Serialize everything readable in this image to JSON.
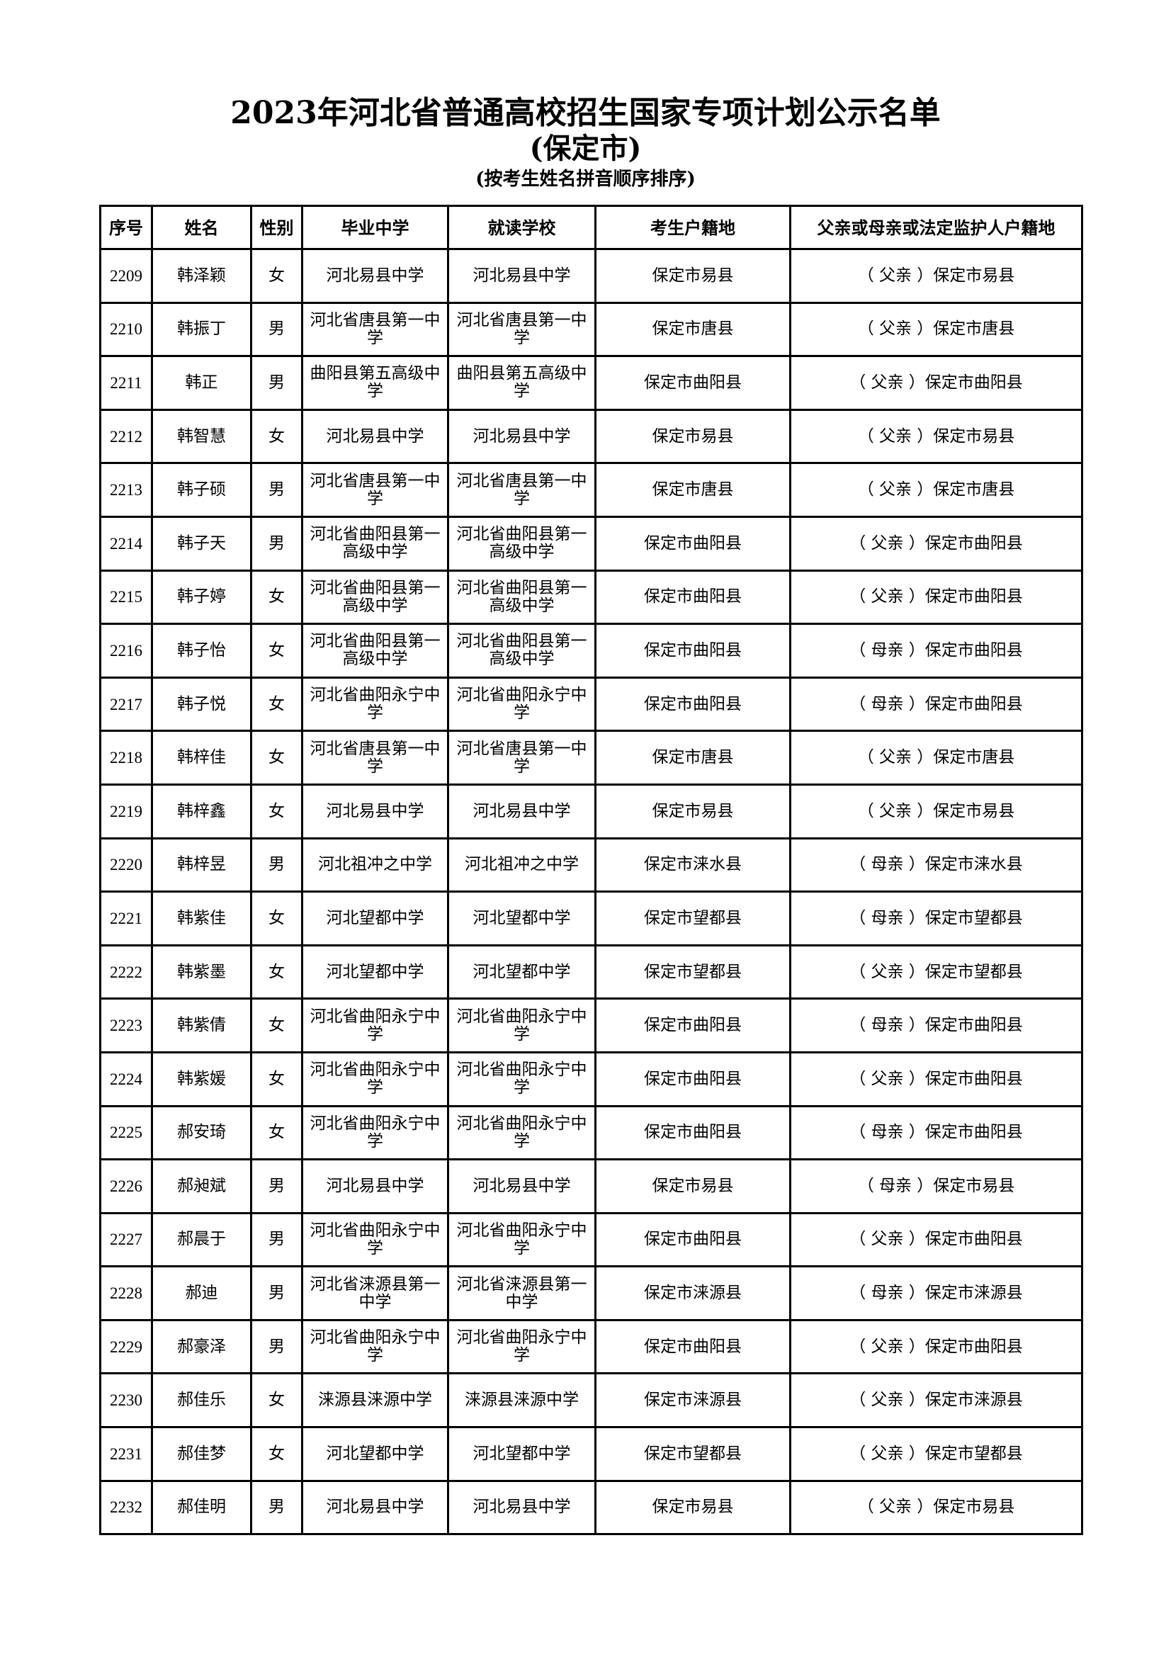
{
  "document": {
    "title": "2023年河北省普通高校招生国家专项计划公示名单",
    "subtitle": "(保定市)",
    "note": "(按考生姓名拼音顺序排序)"
  },
  "table": {
    "headers": [
      "序号",
      "姓名",
      "性别",
      "毕业中学",
      "就读学校",
      "考生户籍地",
      "父亲或母亲或法定监护人户籍地"
    ],
    "rows": [
      [
        "2209",
        "韩泽颖",
        "女",
        "河北易县中学",
        "河北易县中学",
        "保定市易县",
        "（ 父亲 ）保定市易县"
      ],
      [
        "2210",
        "韩振丁",
        "男",
        "河北省唐县第一中学",
        "河北省唐县第一中学",
        "保定市唐县",
        "（ 父亲 ）保定市唐县"
      ],
      [
        "2211",
        "韩正",
        "男",
        "曲阳县第五高级中学",
        "曲阳县第五高级中学",
        "保定市曲阳县",
        "（ 父亲 ）保定市曲阳县"
      ],
      [
        "2212",
        "韩智慧",
        "女",
        "河北易县中学",
        "河北易县中学",
        "保定市易县",
        "（ 父亲 ）保定市易县"
      ],
      [
        "2213",
        "韩子硕",
        "男",
        "河北省唐县第一中学",
        "河北省唐县第一中学",
        "保定市唐县",
        "（ 父亲 ）保定市唐县"
      ],
      [
        "2214",
        "韩子天",
        "男",
        "河北省曲阳县第一高级中学",
        "河北省曲阳县第一高级中学",
        "保定市曲阳县",
        "（ 父亲 ）保定市曲阳县"
      ],
      [
        "2215",
        "韩子婷",
        "女",
        "河北省曲阳县第一高级中学",
        "河北省曲阳县第一高级中学",
        "保定市曲阳县",
        "（ 父亲 ）保定市曲阳县"
      ],
      [
        "2216",
        "韩子怡",
        "女",
        "河北省曲阳县第一高级中学",
        "河北省曲阳县第一高级中学",
        "保定市曲阳县",
        "（ 母亲 ）保定市曲阳县"
      ],
      [
        "2217",
        "韩子悦",
        "女",
        "河北省曲阳永宁中学",
        "河北省曲阳永宁中学",
        "保定市曲阳县",
        "（ 母亲 ）保定市曲阳县"
      ],
      [
        "2218",
        "韩梓佳",
        "女",
        "河北省唐县第一中学",
        "河北省唐县第一中学",
        "保定市唐县",
        "（ 父亲 ）保定市唐县"
      ],
      [
        "2219",
        "韩梓鑫",
        "女",
        "河北易县中学",
        "河北易县中学",
        "保定市易县",
        "（ 父亲 ）保定市易县"
      ],
      [
        "2220",
        "韩梓昱",
        "男",
        "河北祖冲之中学",
        "河北祖冲之中学",
        "保定市涞水县",
        "（ 母亲 ）保定市涞水县"
      ],
      [
        "2221",
        "韩紫佳",
        "女",
        "河北望都中学",
        "河北望都中学",
        "保定市望都县",
        "（ 母亲 ）保定市望都县"
      ],
      [
        "2222",
        "韩紫墨",
        "女",
        "河北望都中学",
        "河北望都中学",
        "保定市望都县",
        "（ 父亲 ）保定市望都县"
      ],
      [
        "2223",
        "韩紫倩",
        "女",
        "河北省曲阳永宁中学",
        "河北省曲阳永宁中学",
        "保定市曲阳县",
        "（ 母亲 ）保定市曲阳县"
      ],
      [
        "2224",
        "韩紫媛",
        "女",
        "河北省曲阳永宁中学",
        "河北省曲阳永宁中学",
        "保定市曲阳县",
        "（ 父亲 ）保定市曲阳县"
      ],
      [
        "2225",
        "郝安琦",
        "女",
        "河北省曲阳永宁中学",
        "河北省曲阳永宁中学",
        "保定市曲阳县",
        "（ 母亲 ）保定市曲阳县"
      ],
      [
        "2226",
        "郝昶斌",
        "男",
        "河北易县中学",
        "河北易县中学",
        "保定市易县",
        "（ 母亲 ）保定市易县"
      ],
      [
        "2227",
        "郝晨于",
        "男",
        "河北省曲阳永宁中学",
        "河北省曲阳永宁中学",
        "保定市曲阳县",
        "（ 父亲 ）保定市曲阳县"
      ],
      [
        "2228",
        "郝迪",
        "男",
        "河北省涞源县第一中学",
        "河北省涞源县第一中学",
        "保定市涞源县",
        "（ 母亲 ）保定市涞源县"
      ],
      [
        "2229",
        "郝豪泽",
        "男",
        "河北省曲阳永宁中学",
        "河北省曲阳永宁中学",
        "保定市曲阳县",
        "（ 父亲 ）保定市曲阳县"
      ],
      [
        "2230",
        "郝佳乐",
        "女",
        "涞源县涞源中学",
        "涞源县涞源中学",
        "保定市涞源县",
        "（ 父亲 ）保定市涞源县"
      ],
      [
        "2231",
        "郝佳梦",
        "女",
        "河北望都中学",
        "河北望都中学",
        "保定市望都县",
        "（ 父亲 ）保定市望都县"
      ],
      [
        "2232",
        "郝佳明",
        "男",
        "河北易县中学",
        "河北易县中学",
        "保定市易县",
        "（ 父亲 ）保定市易县"
      ]
    ]
  }
}
